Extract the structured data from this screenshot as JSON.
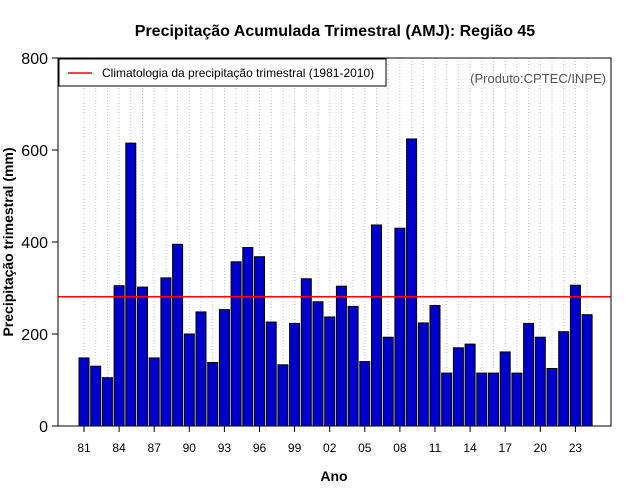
{
  "chart_data": {
    "type": "bar",
    "title": "Precipitação Acumulada Trimestral (AMJ): Região 45",
    "xlabel": "Ano",
    "ylabel": "Precipitação trimestral (mm)",
    "ylim": [
      0,
      800
    ],
    "yticks": [
      "0",
      "200",
      "400",
      "600",
      "800"
    ],
    "xtick_labels": [
      "81",
      "84",
      "87",
      "90",
      "93",
      "96",
      "99",
      "02",
      "05",
      "08",
      "11",
      "14",
      "17",
      "20",
      "23"
    ],
    "categories": [
      1981,
      1982,
      1983,
      1984,
      1985,
      1986,
      1987,
      1988,
      1989,
      1990,
      1991,
      1992,
      1993,
      1994,
      1995,
      1996,
      1997,
      1998,
      1999,
      2000,
      2001,
      2002,
      2003,
      2004,
      2005,
      2006,
      2007,
      2008,
      2009,
      2010,
      2011,
      2012,
      2013,
      2014,
      2015,
      2016,
      2017,
      2018,
      2019,
      2020,
      2021,
      2022,
      2023,
      2024
    ],
    "values": [
      148,
      130,
      105,
      305,
      615,
      302,
      148,
      322,
      395,
      200,
      248,
      138,
      253,
      357,
      388,
      368,
      226,
      133,
      223,
      320,
      270,
      237,
      304,
      260,
      140,
      437,
      193,
      430,
      624,
      224,
      262,
      115,
      170,
      178,
      115,
      115,
      161,
      115,
      223,
      193,
      125,
      205,
      306,
      242
    ],
    "climatology": 281,
    "legend": "Climatologia da precipitação trimestral (1981-2010)",
    "legend_position": "top-left",
    "grid": "vertical dotted",
    "bar_color": "#0000CC",
    "line_color": "#FF0000"
  },
  "credit": "(Produto:CPTEC/INPE)"
}
